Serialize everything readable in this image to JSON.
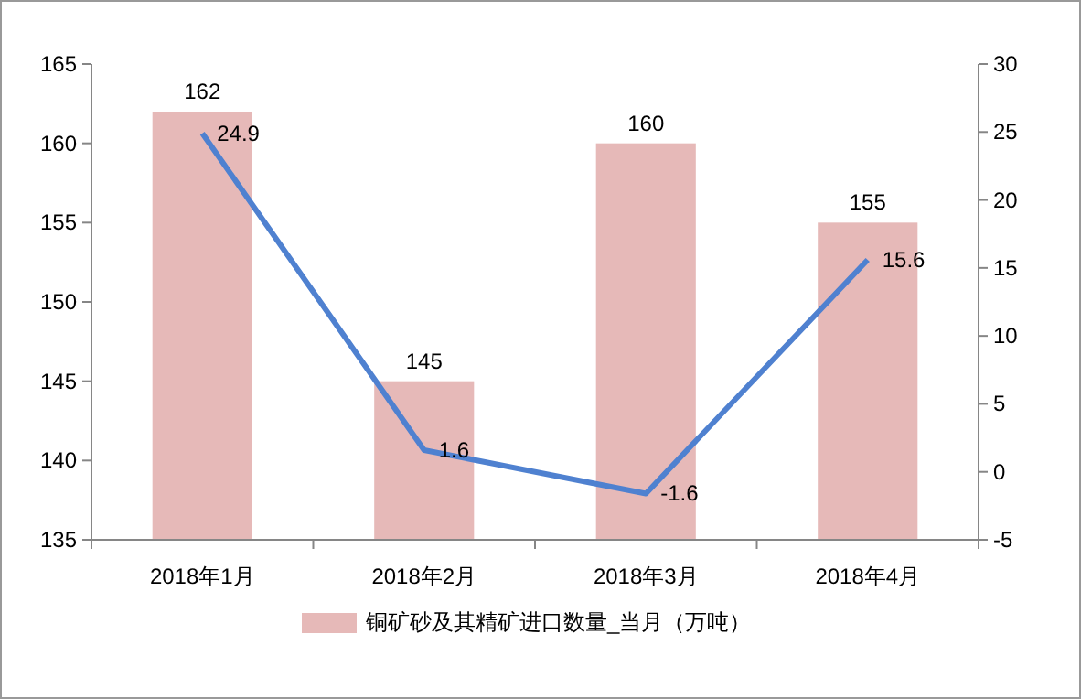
{
  "chart_data": {
    "type": "bar",
    "categories": [
      "2018年1月",
      "2018年2月",
      "2018年3月",
      "2018年4月"
    ],
    "series": [
      {
        "name": "铜矿砂及其精矿进口数量_当月（万吨）",
        "color": "#e6b9b8",
        "values": [
          162,
          145,
          160,
          155
        ]
      },
      {
        "type": "line",
        "axis": "y2",
        "color": "#4f81d0",
        "values": [
          24.9,
          1.6,
          -1.6,
          15.6
        ]
      }
    ],
    "ylim": [
      135,
      165
    ],
    "yticks": [
      135,
      140,
      145,
      150,
      155,
      160,
      165
    ],
    "y2lim": [
      -5,
      30
    ],
    "y2ticks": [
      -5,
      0,
      5,
      10,
      15,
      20,
      25,
      30
    ],
    "data_labels": true,
    "legend": "bottom",
    "grid": false,
    "marker": "none"
  }
}
